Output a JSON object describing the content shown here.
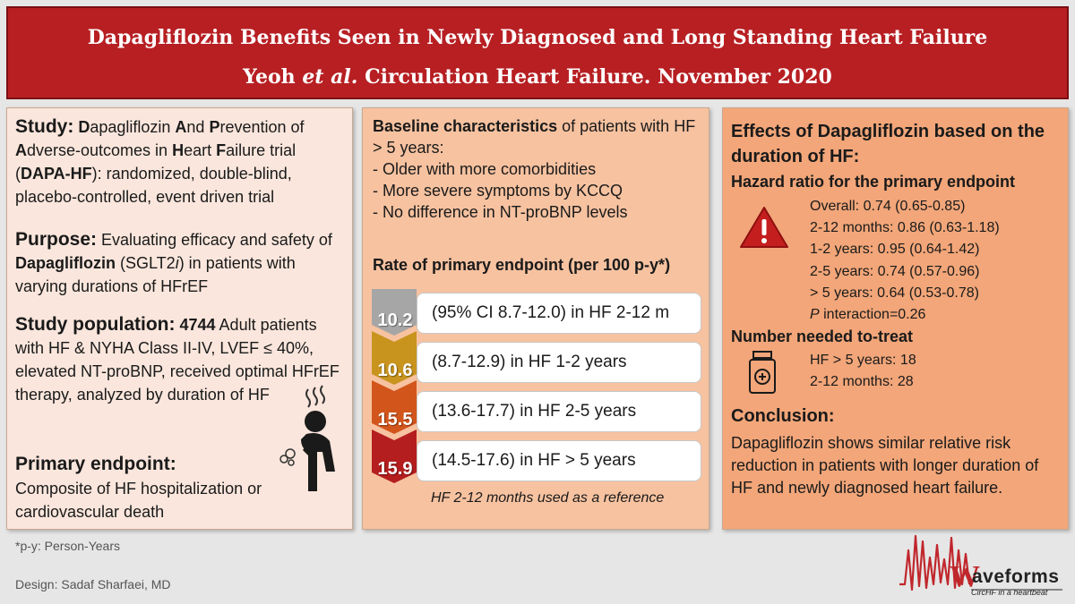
{
  "header": {
    "title": "Dapagliflozin Benefits Seen in Newly Diagnosed and Long Standing Heart Failure",
    "subtitle_authors": "Yeoh",
    "subtitle_etal": "et al.",
    "subtitle_rest": "Circulation Heart Failure. November 2020"
  },
  "study": {
    "head": "Study:",
    "t1": "D",
    "t2": "apagliflozin ",
    "t3": "A",
    "t4": "nd ",
    "t5": "P",
    "t6": "revention of ",
    "t7": "A",
    "t8": "dverse-outcomes in ",
    "t9": "H",
    "t10": "eart ",
    "t11": "F",
    "t12": "ailure trial (",
    "t13": "DAPA-HF",
    "t14": "): randomized, double-blind, placebo-controlled, event driven trial"
  },
  "purpose": {
    "head": "Purpose:",
    "t1": " Evaluating efficacy and safety of ",
    "t2": "Dapagliflozin",
    "t3": " (SGLT2",
    "t4": "i",
    "t5": ") in patients with varying durations of HFrEF"
  },
  "population": {
    "head": "Study population:",
    "count": "4744",
    "t1": " Adult patients with HF & NYHA Class II-IV, LVEF ≤ 40%, elevated NT-proBNP, received optimal HFrEF therapy, analyzed by duration of HF"
  },
  "endpoint": {
    "head": "Primary endpoint:",
    "text": "Composite of HF hospitalization or cardiovascular death"
  },
  "baseline": {
    "head": "Baseline characteristics",
    "intro": " of patients with HF > 5 years:",
    "items": [
      "- Older with more comorbidities",
      "- More severe symptoms by KCCQ",
      "- No difference in NT-proBNP levels"
    ]
  },
  "rates": {
    "title": "Rate of primary endpoint (per 100 p-y*)",
    "rows": [
      {
        "value": "10.2",
        "text": "(95% CI 8.7-12.0) in HF 2-12 m",
        "color": "#a6a6a6"
      },
      {
        "value": "10.6",
        "text": "(8.7-12.9) in HF 1-2 years",
        "color": "#c8941e"
      },
      {
        "value": "15.5",
        "text": "(13.6-17.7) in HF 2-5 years",
        "color": "#d2561c"
      },
      {
        "value": "15.9",
        "text": "(14.5-17.6) in HF > 5 years",
        "color": "#b41e1e"
      }
    ],
    "note": "HF 2-12 months used as a reference"
  },
  "effects": {
    "head": "Effects of Dapagliflozin based on the duration of HF:",
    "hr_head": "Hazard ratio for the primary endpoint",
    "hr_items": [
      "Overall: 0.74 (0.65-0.85)",
      "2-12 months: 0.86 (0.63-1.18)",
      "1-2 years: 0.95 (0.64-1.42)",
      "2-5 years: 0.74 (0.57-0.96)",
      "> 5 years: 0.64 (0.53-0.78)"
    ],
    "p_label": "P",
    "p_rest": " interaction=0.26",
    "nnt_head": "Number needed to-treat",
    "nnt_items": [
      "HF > 5 years: 18",
      "2-12 months: 28"
    ],
    "concl_head": "Conclusion:",
    "concl_text": "Dapagliflozin shows similar relative risk reduction in patients with longer duration of HF and newly diagnosed heart failure."
  },
  "footer": {
    "note": "*p-y: Person-Years",
    "design": "Design: Sadaf Sharfaei, MD",
    "logo_word": "aveforms",
    "logo_tag": "CircHF in a heartbeat"
  },
  "colors": {
    "header_bg": "#b71f23",
    "panel1_bg": "#fae6dc",
    "panel2_bg": "#f7c2a0",
    "panel3_bg": "#f2a679",
    "warning_red": "#c41e1e",
    "logo_red": "#c0272d"
  },
  "icons": [
    "patient-coughing-icon",
    "warning-icon",
    "medicine-bottle-icon",
    "waveforms-logo"
  ]
}
